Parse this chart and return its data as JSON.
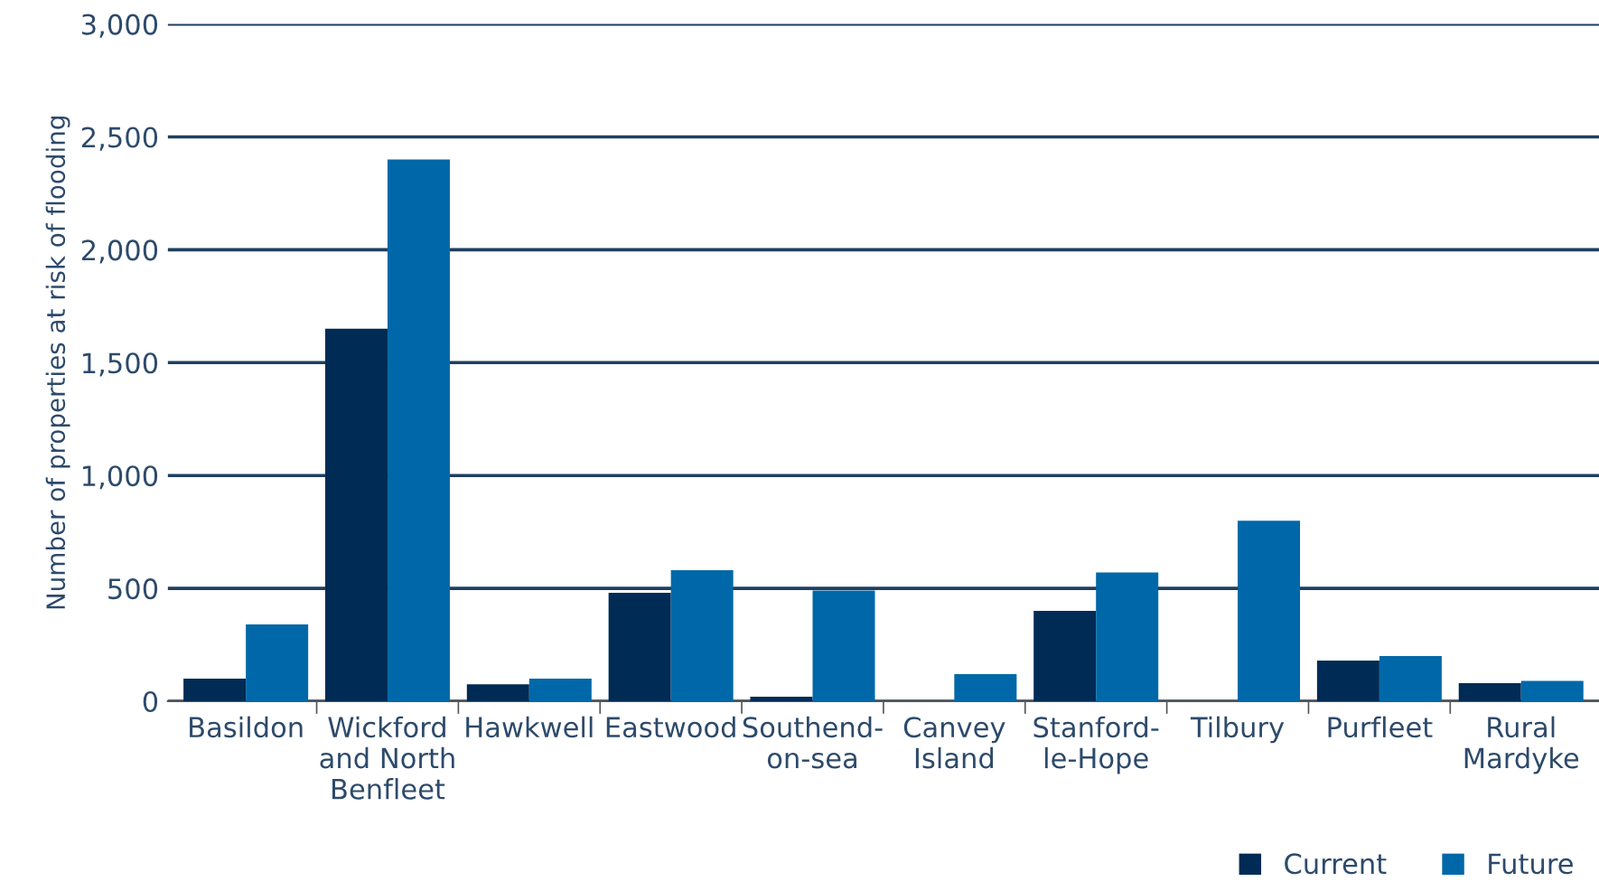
{
  "chart_data": {
    "type": "bar",
    "ylabel": "Number of properties at risk of flooding",
    "categories": [
      "Basildon",
      "Wickford\nand North\nBenfleet",
      "Hawkwell",
      "Eastwood",
      "Southend-\non-sea",
      "Canvey\nIsland",
      "Stanford-\nle-Hope",
      "Tilbury",
      "Purfleet",
      "Rural\nMardyke"
    ],
    "series": [
      {
        "name": "Current",
        "color": "#002b55",
        "values": [
          100,
          1650,
          75,
          480,
          20,
          0,
          400,
          0,
          180,
          80
        ]
      },
      {
        "name": "Future",
        "color": "#0068a8",
        "values": [
          340,
          2400,
          100,
          580,
          490,
          120,
          570,
          800,
          200,
          90
        ]
      }
    ],
    "ylim": [
      0,
      3000
    ],
    "yticks": [
      {
        "value": 0,
        "label": "0"
      },
      {
        "value": 500,
        "label": "500"
      },
      {
        "value": 1000,
        "label": "1,000"
      },
      {
        "value": 1500,
        "label": "1,500"
      },
      {
        "value": 2000,
        "label": "2,000"
      },
      {
        "value": 2500,
        "label": "2,500"
      },
      {
        "value": 3000,
        "label": "3,000"
      }
    ],
    "grid": "y",
    "legend": "bottom right"
  }
}
